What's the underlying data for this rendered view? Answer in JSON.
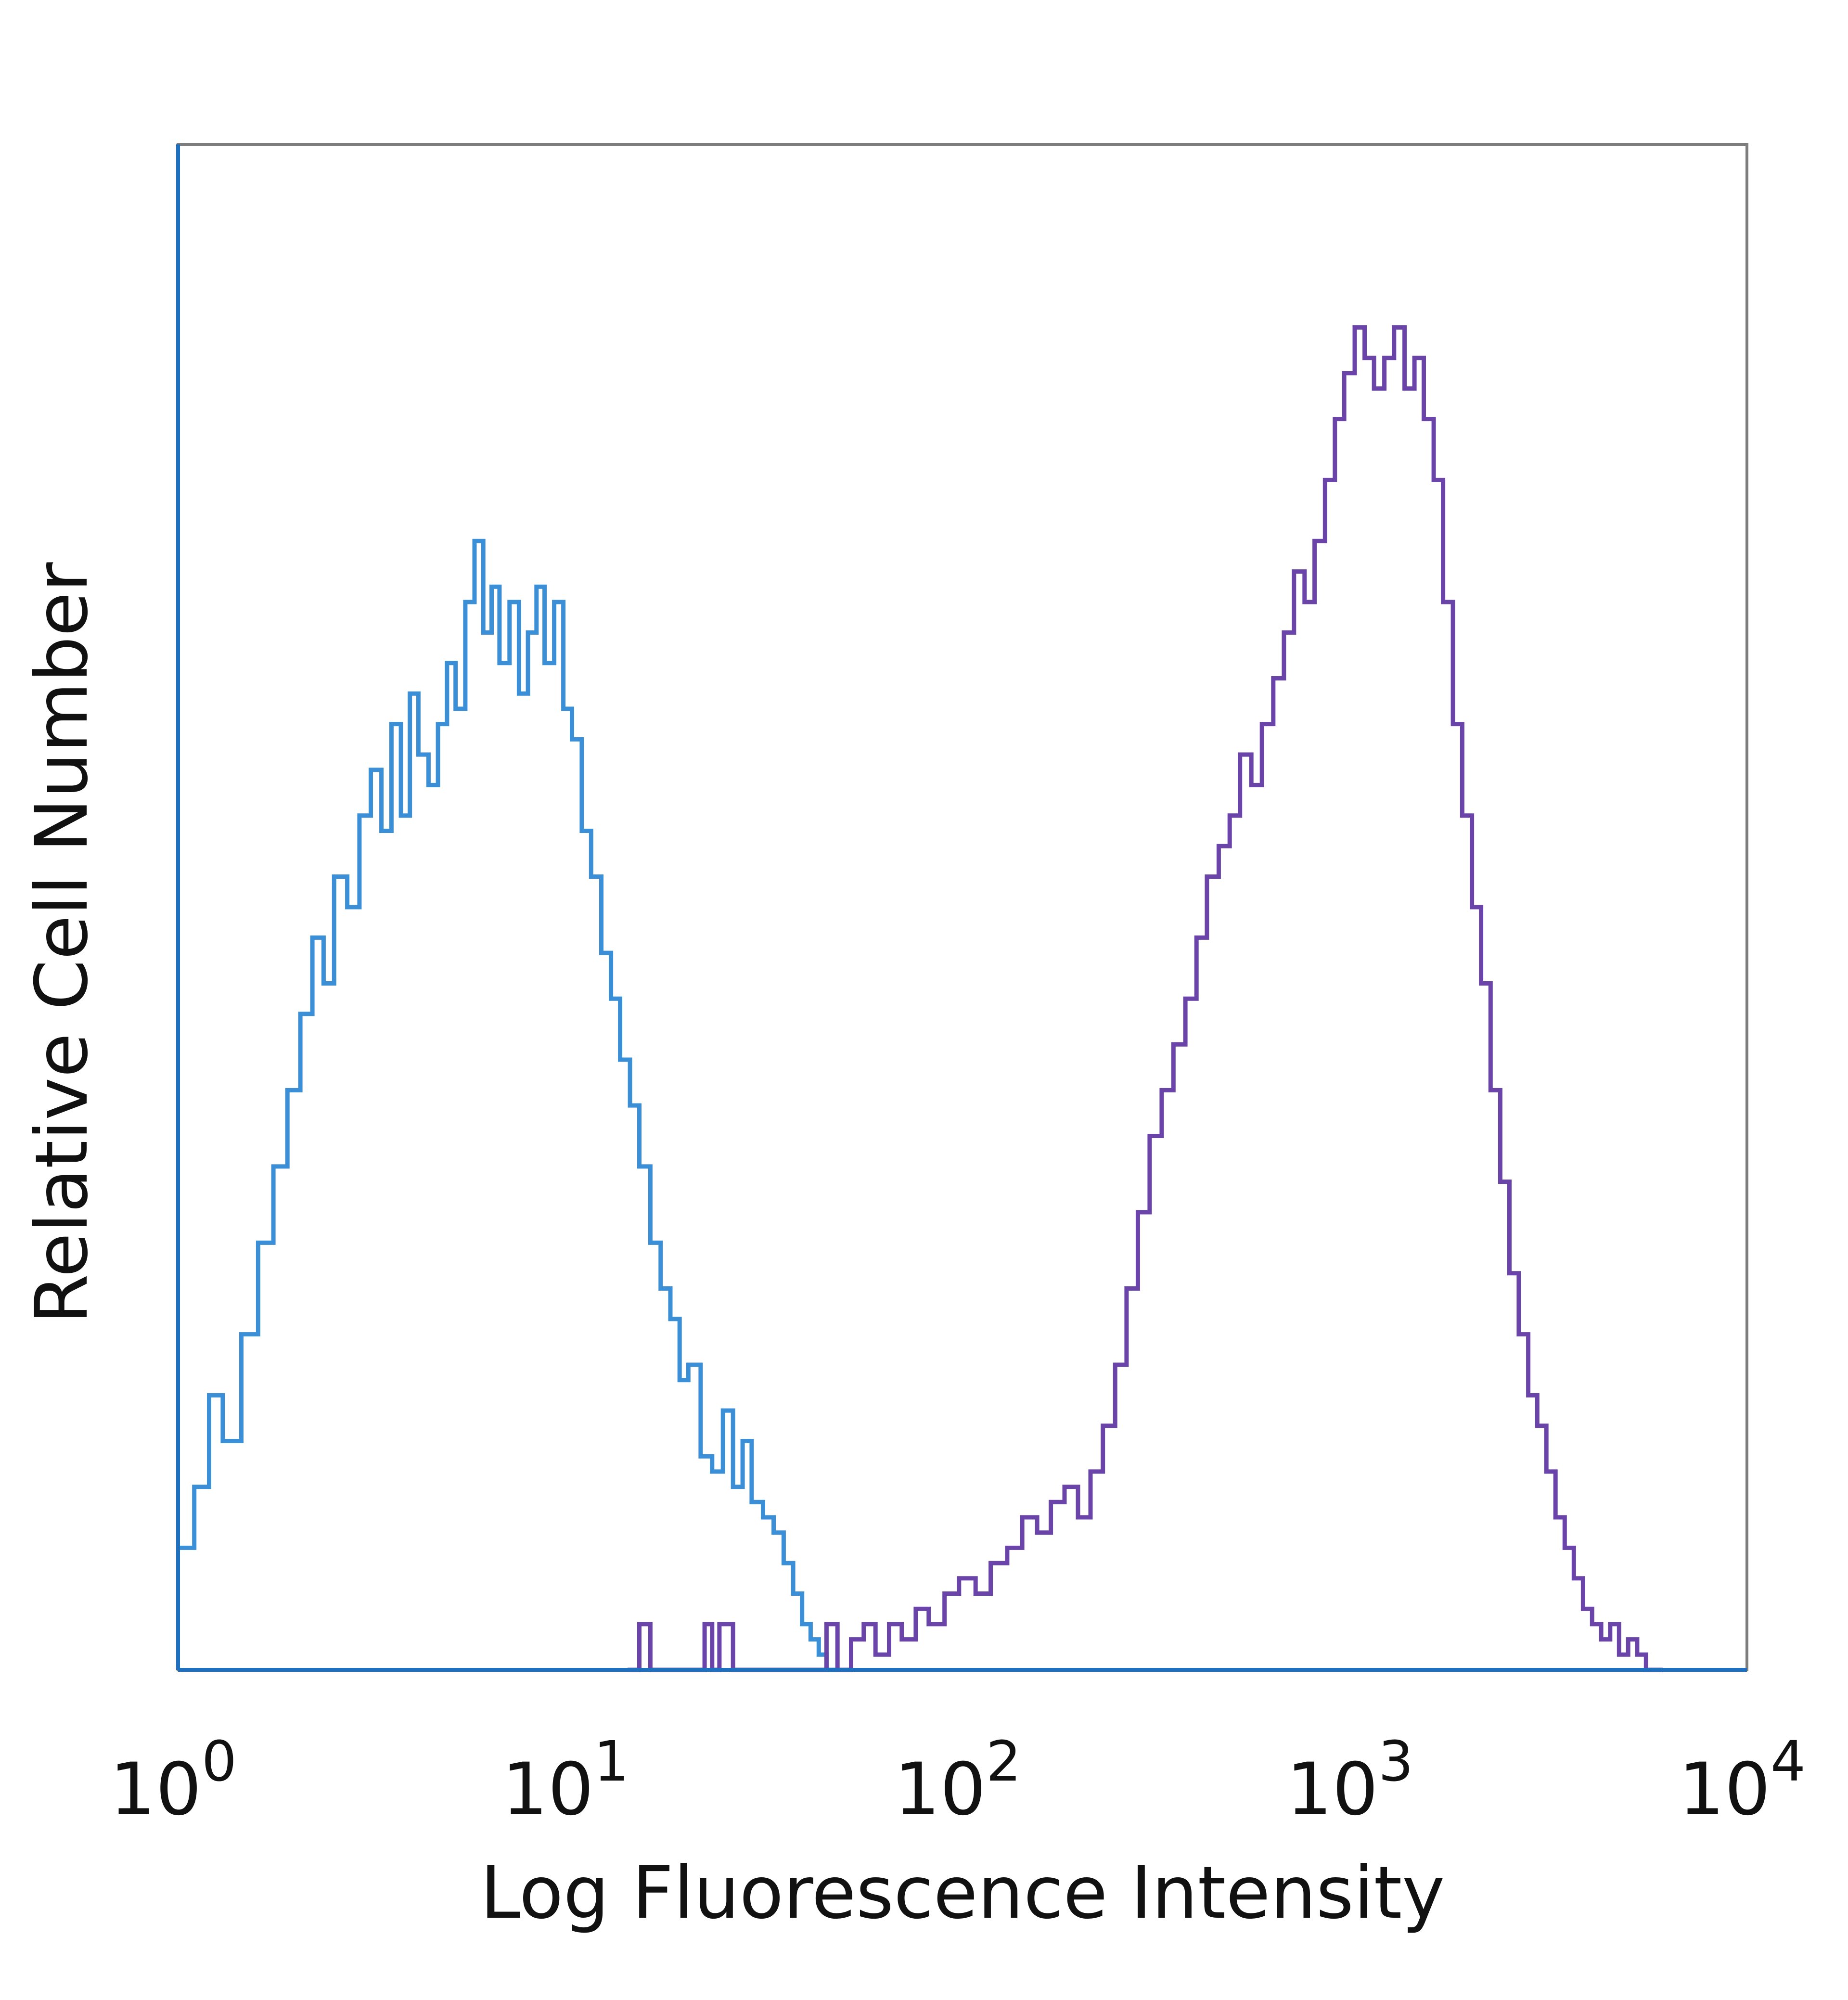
{
  "chart_data": {
    "type": "line",
    "title": "",
    "xlabel": "Log Fluorescence Intensity",
    "ylabel": "Relative Cell Number",
    "x_scale": "log",
    "xlim": [
      1,
      10000
    ],
    "ylim": [
      0,
      100
    ],
    "grid": false,
    "legend": "none",
    "x_ticks": [
      {
        "value": 1,
        "base": "10",
        "exp": "0"
      },
      {
        "value": 10,
        "base": "10",
        "exp": "1"
      },
      {
        "value": 100,
        "base": "10",
        "exp": "2"
      },
      {
        "value": 1000,
        "base": "10",
        "exp": "3"
      },
      {
        "value": 10000,
        "base": "10",
        "exp": "4"
      }
    ],
    "series": [
      {
        "color": "#3a8fd6",
        "x": [
          1.0,
          1.1,
          1.2,
          1.3,
          1.45,
          1.6,
          1.75,
          1.9,
          2.05,
          2.2,
          2.35,
          2.5,
          2.7,
          2.9,
          3.1,
          3.3,
          3.5,
          3.7,
          3.9,
          4.1,
          4.35,
          4.6,
          4.85,
          5.1,
          5.4,
          5.7,
          6.0,
          6.3,
          6.6,
          7.0,
          7.4,
          7.8,
          8.2,
          8.6,
          9.1,
          9.6,
          10.1,
          10.7,
          11.3,
          12.0,
          12.7,
          13.4,
          14.2,
          15.0,
          16.0,
          17.0,
          18.0,
          19.0,
          20.0,
          21.5,
          23.0,
          24.5,
          26.0,
          27.5,
          29.0,
          31.0,
          33.0,
          35.0,
          37.0,
          39.0,
          41.0,
          43.0,
          45.0,
          47.0,
          50.0
        ],
        "values": [
          8,
          12,
          18,
          15,
          22,
          28,
          33,
          38,
          43,
          48,
          45,
          52,
          50,
          56,
          59,
          55,
          62,
          56,
          64,
          60,
          58,
          62,
          66,
          63,
          70,
          74,
          68,
          71,
          66,
          70,
          64,
          68,
          71,
          66,
          70,
          63,
          61,
          55,
          52,
          47,
          44,
          40,
          37,
          33,
          28,
          25,
          23,
          19,
          20,
          14,
          13,
          17,
          12,
          15,
          11,
          10,
          9,
          7,
          5,
          3,
          2,
          1,
          0,
          0,
          0
        ]
      },
      {
        "color": "#6a44a8",
        "x": [
          14,
          15,
          16,
          20,
          22,
          23,
          24,
          26,
          28,
          30,
          33,
          36,
          39,
          42,
          45,
          48,
          52,
          56,
          60,
          65,
          70,
          76,
          82,
          90,
          98,
          108,
          118,
          130,
          142,
          155,
          168,
          182,
          197,
          212,
          228,
          245,
          262,
          280,
          300,
          322,
          345,
          370,
          395,
          420,
          450,
          480,
          510,
          545,
          580,
          620,
          660,
          700,
          745,
          790,
          840,
          890,
          940,
          1000,
          1060,
          1120,
          1190,
          1260,
          1340,
          1420,
          1500,
          1590,
          1680,
          1780,
          1880,
          1990,
          2100,
          2220,
          2350,
          2480,
          2620,
          2770,
          2920,
          3080,
          3250,
          3430,
          3620,
          3820,
          4030,
          4250,
          4480,
          4720,
          4980,
          5250,
          5530,
          5800,
          6100
        ],
        "values": [
          0,
          3,
          0,
          0,
          3,
          0,
          3,
          0,
          0,
          0,
          0,
          0,
          0,
          0,
          3,
          0,
          2,
          3,
          1,
          3,
          2,
          4,
          3,
          5,
          6,
          5,
          7,
          8,
          10,
          9,
          11,
          12,
          10,
          13,
          16,
          20,
          25,
          30,
          35,
          38,
          41,
          44,
          48,
          52,
          54,
          56,
          60,
          58,
          62,
          65,
          68,
          72,
          70,
          74,
          78,
          82,
          85,
          88,
          86,
          84,
          86,
          88,
          84,
          86,
          82,
          78,
          70,
          62,
          56,
          50,
          45,
          38,
          32,
          26,
          22,
          18,
          16,
          13,
          10,
          8,
          6,
          4,
          3,
          2,
          3,
          1,
          2,
          1,
          0,
          0,
          0
        ]
      }
    ]
  }
}
